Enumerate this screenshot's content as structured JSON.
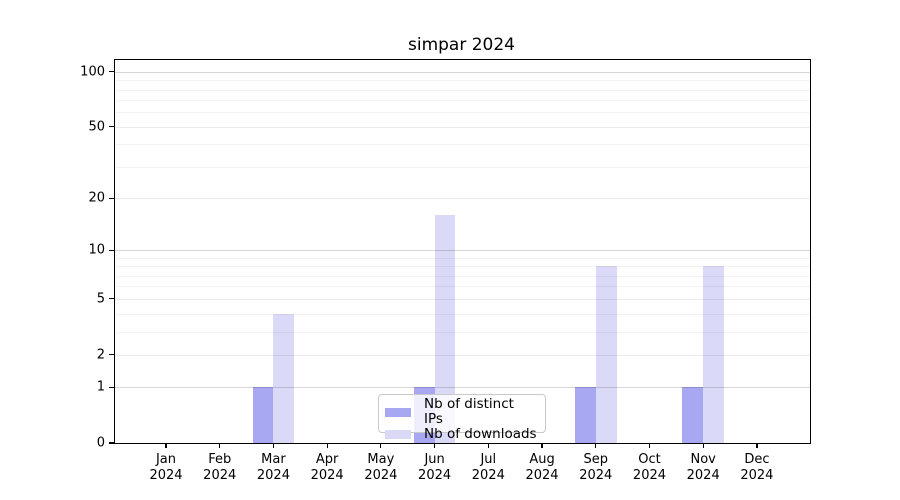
{
  "chart_data": {
    "type": "bar",
    "title": "simpar 2024",
    "categories": [
      "Jan",
      "Feb",
      "Mar",
      "Apr",
      "May",
      "Jun",
      "Jul",
      "Aug",
      "Sep",
      "Oct",
      "Nov",
      "Dec"
    ],
    "category_year": "2024",
    "series": [
      {
        "name": "Nb of distinct IPs",
        "color": "#a8a8f2",
        "values": [
          0,
          0,
          1,
          0,
          0,
          1,
          0,
          0,
          1,
          0,
          1,
          0
        ]
      },
      {
        "name": "Nb of downloads",
        "color": "#dadaf8",
        "values": [
          0,
          0,
          4,
          0,
          0,
          16,
          0,
          0,
          8,
          0,
          8,
          0
        ]
      }
    ],
    "yscale": "log1p",
    "ylim": [
      0,
      116
    ],
    "yticks": [
      0,
      1,
      2,
      5,
      10,
      20,
      50,
      100
    ],
    "minor_yticks": [
      3,
      4,
      6,
      7,
      8,
      9,
      30,
      40,
      60,
      70,
      80,
      90
    ],
    "grid": true,
    "legend_position": "lower-center-inside",
    "colors": {
      "axis": "#000000",
      "grid_major": "rgba(0,0,0,0.16)",
      "grid_labeled": "rgba(0,0,0,0.08)",
      "grid_minor": "rgba(0,0,0,0.05)"
    }
  }
}
